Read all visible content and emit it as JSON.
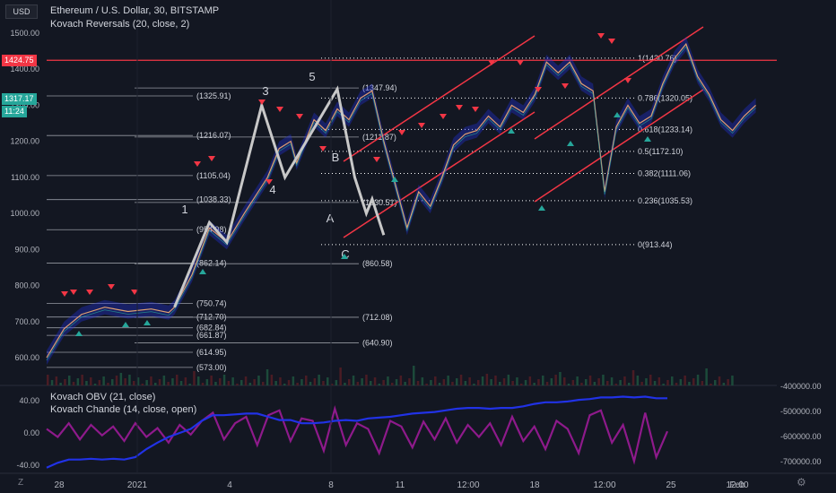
{
  "header": {
    "currency": "USD",
    "title": "Ethereum / U.S. Dollar, 30, BITSTAMP",
    "indicator": "Kovach Reversals (20, close, 2)"
  },
  "price_labels": {
    "current_high": "1424.75",
    "last_price": "1317.17",
    "countdown": "11:24"
  },
  "indicators_panel": {
    "label1": "Kovach OBV (21, close)",
    "label2": "Kovach Chande (14, close, open)",
    "colors": {
      "obv": "#2132e6",
      "chande": "#8e1a8b"
    }
  },
  "bottom_bar": {
    "tz_icon": "Z",
    "gear": "settings-icon"
  },
  "chart_data": [
    {
      "type": "line",
      "title": "Ethereum / U.S. Dollar, 30, BITSTAMP",
      "ylim": [
        560,
        1530
      ],
      "y_ticks": [
        "1500.00",
        "1400.00",
        "1300.00",
        "1200.00",
        "1100.00",
        "1000.00",
        "900.00",
        "800.00",
        "700.00",
        "600.00"
      ],
      "x_ticks": [
        "28",
        "2021",
        "4",
        "8",
        "11",
        "12:00",
        "18",
        "12:00",
        "25",
        "12:00",
        "Feb"
      ],
      "price_path": [
        [
          0,
          600
        ],
        [
          0.03,
          680
        ],
        [
          0.06,
          720
        ],
        [
          0.1,
          740
        ],
        [
          0.14,
          728
        ],
        [
          0.18,
          735
        ],
        [
          0.21,
          725
        ],
        [
          0.22,
          740
        ],
        [
          0.25,
          830
        ],
        [
          0.28,
          960
        ],
        [
          0.31,
          920
        ],
        [
          0.34,
          1000
        ],
        [
          0.38,
          1100
        ],
        [
          0.4,
          1180
        ],
        [
          0.42,
          1200
        ],
        [
          0.43,
          1140
        ],
        [
          0.46,
          1260
        ],
        [
          0.48,
          1230
        ],
        [
          0.5,
          1290
        ],
        [
          0.52,
          1260
        ],
        [
          0.54,
          1320
        ],
        [
          0.56,
          1340
        ],
        [
          0.58,
          1200
        ],
        [
          0.6,
          1080
        ],
        [
          0.62,
          960
        ],
        [
          0.64,
          1060
        ],
        [
          0.66,
          1020
        ],
        [
          0.68,
          1100
        ],
        [
          0.7,
          1190
        ],
        [
          0.72,
          1220
        ],
        [
          0.74,
          1230
        ],
        [
          0.76,
          1270
        ],
        [
          0.78,
          1240
        ],
        [
          0.8,
          1300
        ],
        [
          0.82,
          1280
        ],
        [
          0.84,
          1330
        ],
        [
          0.86,
          1420
        ],
        [
          0.88,
          1390
        ],
        [
          0.9,
          1420
        ],
        [
          0.92,
          1360
        ],
        [
          0.94,
          1340
        ],
        [
          0.95,
          1200
        ],
        [
          0.96,
          1060
        ],
        [
          0.97,
          1150
        ],
        [
          0.98,
          1240
        ],
        [
          1.0,
          1300
        ],
        [
          1.02,
          1250
        ],
        [
          1.04,
          1270
        ],
        [
          1.06,
          1360
        ],
        [
          1.08,
          1430
        ],
        [
          1.1,
          1470
        ],
        [
          1.12,
          1380
        ],
        [
          1.14,
          1330
        ],
        [
          1.16,
          1260
        ],
        [
          1.18,
          1230
        ],
        [
          1.2,
          1270
        ],
        [
          1.22,
          1300
        ]
      ],
      "elliott_wave": {
        "points": [
          [
            0.22,
            740
          ],
          [
            0.28,
            975
          ],
          [
            0.31,
            920
          ],
          [
            0.37,
            1300
          ],
          [
            0.41,
            1100
          ],
          [
            0.5,
            1345
          ],
          [
            0.53,
            1100
          ],
          [
            0.55,
            1000
          ],
          [
            0.56,
            1040
          ],
          [
            0.58,
            940
          ]
        ],
        "labels": [
          "1",
          "3",
          "4",
          "5",
          "B",
          "A",
          "C"
        ]
      },
      "fibonacci": [
        {
          "ratio": "1",
          "value": "1(1430.76)",
          "level": 1430.76
        },
        {
          "ratio": "0.786",
          "value": "0.786(1320.05)",
          "level": 1320.05
        },
        {
          "ratio": "0.618",
          "value": "0.618(1233.14)",
          "level": 1233.14
        },
        {
          "ratio": "0.5",
          "value": "0.5(1172.10)",
          "level": 1172.1
        },
        {
          "ratio": "0.382",
          "value": "0.382(1111.06)",
          "level": 1111.06
        },
        {
          "ratio": "0.236",
          "value": "0.236(1035.53)",
          "level": 1035.53
        },
        {
          "ratio": "0",
          "value": "0(913.44)",
          "level": 913.44
        }
      ],
      "level_labels": [
        {
          "text": "(1347.94)",
          "level": 1347.94
        },
        {
          "text": "(1325.91)",
          "level": 1325.91
        },
        {
          "text": "(1216.07)",
          "level": 1216.07
        },
        {
          "text": "(1211.87)",
          "level": 1211.87
        },
        {
          "text": "(1105.04)",
          "level": 1105.04
        },
        {
          "text": "(1038.33)",
          "level": 1038.33
        },
        {
          "text": "(1030.51)",
          "level": 1030.51
        },
        {
          "text": "(954.98)",
          "level": 954.98
        },
        {
          "text": "(862.14)",
          "level": 862.14
        },
        {
          "text": "(860.58)",
          "level": 860.58
        },
        {
          "text": "(750.74)",
          "level": 750.74
        },
        {
          "text": "(712.70)",
          "level": 712.7
        },
        {
          "text": "(712.08)",
          "level": 712.08
        },
        {
          "text": "(682.84)",
          "level": 682.84
        },
        {
          "text": "(661.87)",
          "level": 661.87
        },
        {
          "text": "(640.90)",
          "level": 640.9
        },
        {
          "text": "(614.95)",
          "level": 614.95
        },
        {
          "text": "(573.00)",
          "level": 573.0
        }
      ],
      "horizontal_line": 1424.75
    },
    {
      "type": "line",
      "title": "",
      "left_ticks": [
        "40.00",
        "0.00",
        "-40.00"
      ],
      "right_ticks": [
        "-400000.00",
        "-500000.00",
        "-600000.00",
        "-700000.00"
      ],
      "series": [
        {
          "name": "Kovach OBV (21, close)",
          "values": [
            -43,
            -37,
            -33,
            -33,
            -32,
            -33,
            -32,
            -33,
            -30,
            -20,
            -12,
            -5,
            0,
            5,
            15,
            22,
            22,
            23,
            24,
            24,
            20,
            16,
            16,
            12,
            12,
            13,
            15,
            16,
            15,
            18,
            19,
            20,
            22,
            24,
            25,
            26,
            28,
            30,
            31,
            31,
            30,
            31,
            31,
            33,
            36,
            38,
            38,
            39,
            41,
            42,
            44,
            44,
            45,
            44,
            45,
            43,
            43
          ]
        },
        {
          "name": "Kovach Chande (14, close, open)",
          "values": [
            5,
            -5,
            12,
            -8,
            10,
            -3,
            8,
            -10,
            12,
            -5,
            6,
            -12,
            10,
            -2,
            15,
            25,
            -8,
            12,
            20,
            -15,
            22,
            28,
            -10,
            18,
            15,
            -22,
            30,
            -15,
            12,
            5,
            -25,
            15,
            8,
            -18,
            14,
            -8,
            18,
            -12,
            10,
            -5,
            12,
            -15,
            20,
            -10,
            8,
            -20,
            15,
            5,
            -25,
            22,
            28,
            -12,
            10,
            -35,
            25,
            -30,
            2
          ]
        }
      ]
    }
  ]
}
